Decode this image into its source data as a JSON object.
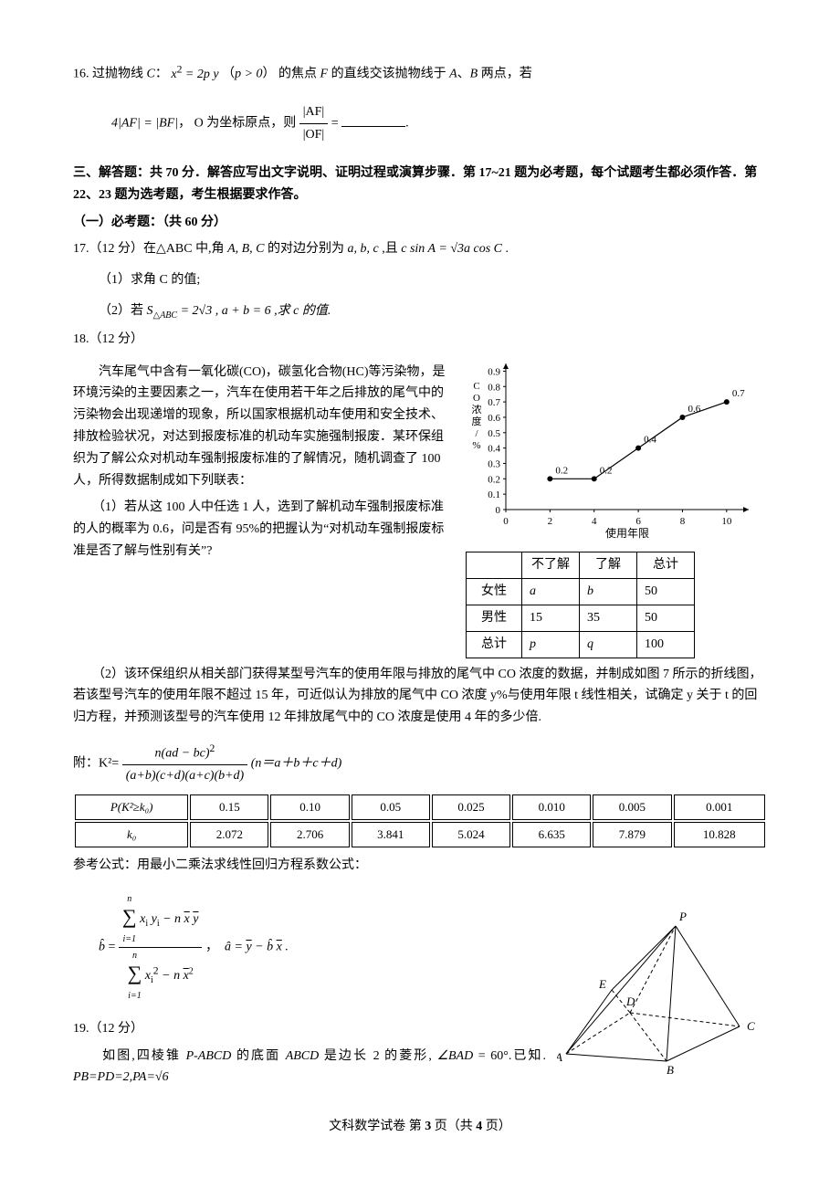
{
  "q16": {
    "stem_a": "16. 过抛物线",
    "stem_b": "的焦点",
    "stem_c": "的直线交该抛物线于",
    "stem_d": "两点，若",
    "curve": "C",
    "colon": "：",
    "eq1": "x² = 2py",
    "cond_open": "（",
    "cond": "p > 0",
    "cond_close": "）",
    "F": "F",
    "Apt": "A",
    "sep": "、",
    "Bpt": "B",
    "line2_a": "4|AF| = |BF|，",
    "line2_b": "O 为坐标原点，则",
    "frac_top": "|AF|",
    "frac_bot": "|OF|",
    "eq": " = ",
    "period": "."
  },
  "section3": {
    "h1": "三、解答题：共 70 分．解答应写出文字说明、证明过程或演算步骤．第 17~21 题为必考题，每个试题考生都必须作答．第 22、23 题为选考题，考生根据要求作答。",
    "h2": "（一）必考题：（共 60 分）"
  },
  "q17": {
    "stem_a": "17.（12 分）在",
    "tri": "△ABC",
    "stem_b": "中,角",
    "ABC": "A, B, C",
    "stem_c": "的对边分别为",
    "abc": "a, b, c",
    "stem_d": ",且",
    "eq_l": "c sin A",
    "eq_m": " = ",
    "root3": "√3",
    "eq_r": "a cos C",
    "period": " .",
    "p1": "（1）求角 C 的值;",
    "p2a": "（2）若",
    "Sabc": "S",
    "Ssub": "△ABC",
    "p2b": " = 2√3 , a + b = 6 ,求 c 的值."
  },
  "q18": {
    "head": "18.（12 分）",
    "body": "　　汽车尾气中含有一氧化碳(CO)，碳氢化合物(HC)等污染物，是环境污染的主要因素之一，汽车在使用若干年之后排放的尾气中的污染物会出现递增的现象，所以国家根据机动车使用和安全技术、排放检验状况，对达到报废标准的机动车实施强制报废．某环保组织为了解公众对机动车强制报废标准的了解情况，随机调查了 100 人，所得数据制成如下列联表：",
    "p1": "　　（1）若从这 100 人中任选 1 人，选到了解机动车强制报废标准的人的概率为 0.6，问是否有 95%的把握认为“对机动车强制报废标准是否了解与性别有关”?",
    "p2": "　　（2）该环保组织从相关部门获得某型号汽车的使用年限与排放的尾气中 CO 浓度的数据，并制成如图 7 所示的折线图，若该型号汽车的使用年限不超过 15 年，可近似认为排放的尾气中 CO 浓度 y%与使用年限 t 线性相关，试确定 y 关于 t 的回归方程，并预测该型号的汽车使用 12 年排放尾气中的 CO 浓度是使用 4 年的多少倍.",
    "chart": {
      "type": "line",
      "x_values": [
        2,
        4,
        6,
        8,
        10
      ],
      "y_values": [
        0.2,
        0.2,
        0.4,
        0.6,
        0.7
      ],
      "point_labels": [
        "0.2",
        "0.2",
        "0.4",
        "0.6",
        "0.7"
      ],
      "y_ticks": [
        0,
        0.1,
        0.2,
        0.3,
        0.4,
        0.5,
        0.6,
        0.7,
        0.8,
        0.9
      ],
      "x_ticks": [
        0,
        2,
        4,
        6,
        8,
        10
      ],
      "y_label": "CO浓度/%",
      "x_label": "使用年限",
      "line_color": "#000000",
      "marker_fill": "#000000",
      "marker_size": 3,
      "xlim": [
        0,
        11
      ],
      "ylim": [
        0,
        0.95
      ],
      "font_size": 11
    },
    "table": {
      "headers": [
        "",
        "不了解",
        "了解",
        "总计"
      ],
      "rows": [
        [
          "女性",
          "a",
          "b",
          "50"
        ],
        [
          "男性",
          "15",
          "35",
          "50"
        ],
        [
          "总计",
          "p",
          "q",
          "100"
        ]
      ]
    },
    "kformula_pre": "附：K²= ",
    "k_num": "n(ad − bc)²",
    "k_den": "(a+b)(c+d)(a+c)(b+d)",
    "kformula_post": "(n＝a＋b＋c＋d)",
    "refTable": {
      "row1": [
        "P(K²≥k₀)",
        "0.15",
        "0.10",
        "0.05",
        "0.025",
        "0.010",
        "0.005",
        "0.001"
      ],
      "row2": [
        "k₀",
        "2.072",
        "2.706",
        "3.841",
        "5.024",
        "6.635",
        "7.879",
        "10.828"
      ]
    },
    "regress_intro": "参考公式：用最小二乘法求线性回归方程系数公式：",
    "bhat": "b̂",
    "equals": " = ",
    "reg_num_sum_top": "n",
    "reg_num_sum_bot": "i=1",
    "reg_num_body": "xᵢ yᵢ − n x̄ ȳ",
    "reg_den_sum_top": "n",
    "reg_den_sum_bot": "i=1",
    "reg_den_body_a": "x",
    "reg_den_body_b": " − n x̄",
    "ahat": "â",
    "reg_a_body": " = ȳ − b̂ x̄ ."
  },
  "q19": {
    "head": "19.（12 分）",
    "body_a": "　　如图,四棱锥 ",
    "pabcd": "P-ABCD",
    "body_b": " 的底面 ",
    "abcd": "ABCD",
    "body_c": " 是边长 2 的菱形,",
    "angle": "∠BAD",
    "body_d": " = 60°.已知.",
    "pbpd": "PB=PD=2,PA=√6",
    "geom": {
      "points": {
        "A": [
          10,
          160
        ],
        "B": [
          120,
          168
        ],
        "C": [
          200,
          130
        ],
        "D": [
          80,
          115
        ],
        "E": [
          60,
          90
        ],
        "P": [
          130,
          20
        ]
      },
      "solid_edges": [
        [
          "A",
          "B"
        ],
        [
          "B",
          "C"
        ],
        [
          "B",
          "P"
        ],
        [
          "A",
          "P"
        ],
        [
          "C",
          "P"
        ],
        [
          "A",
          "E"
        ],
        [
          "E",
          "P"
        ]
      ],
      "dashed_edges": [
        [
          "A",
          "D"
        ],
        [
          "D",
          "C"
        ],
        [
          "D",
          "B"
        ],
        [
          "D",
          "P"
        ],
        [
          "E",
          "D"
        ]
      ],
      "label_offsets": {
        "A": [
          -12,
          8
        ],
        "B": [
          0,
          14
        ],
        "C": [
          8,
          4
        ],
        "D": [
          -4,
          -8
        ],
        "E": [
          -14,
          -2
        ],
        "P": [
          4,
          -6
        ]
      },
      "stroke": "#000000",
      "font_size": 13
    }
  },
  "footer": {
    "a": "文科数学试卷 第 ",
    "pg": "3",
    "b": " 页（共 ",
    "total": "4",
    "c": " 页）"
  }
}
